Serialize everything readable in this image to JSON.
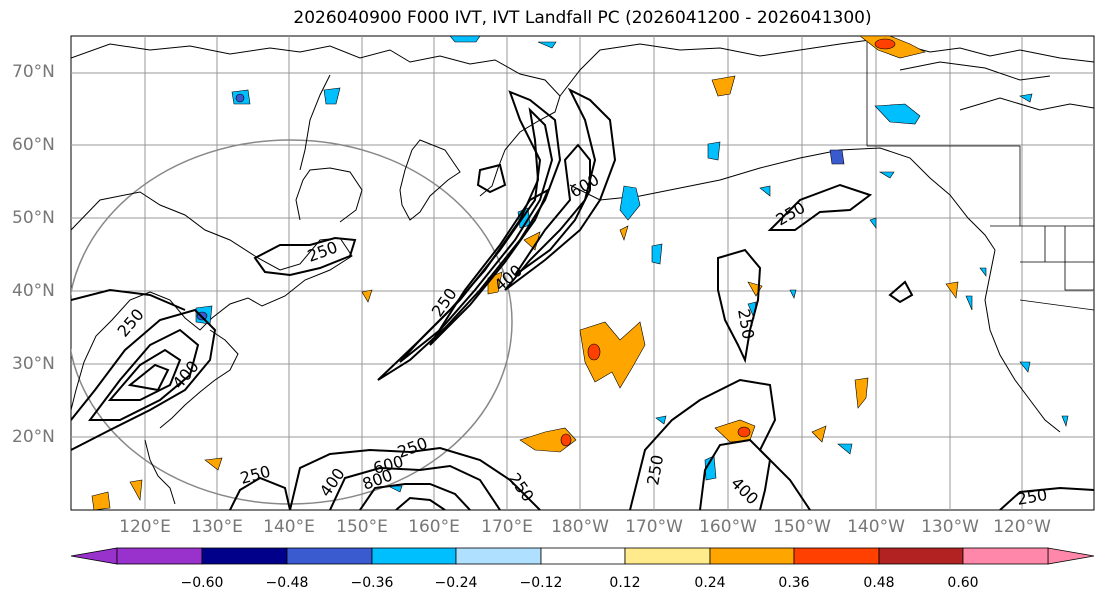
{
  "title": "2026040900 F000 IVT, IVT Landfall PC (2026041200 - 2026041300)",
  "lat_labels": [
    "70°N",
    "60°N",
    "50°N",
    "40°N",
    "30°N",
    "20°N"
  ],
  "lon_labels": [
    "120°E",
    "130°E",
    "140°E",
    "150°E",
    "160°E",
    "170°E",
    "180°W",
    "170°W",
    "160°W",
    "150°W",
    "140°W",
    "130°W",
    "120°W"
  ],
  "contour_labels": [
    "600",
    "250",
    "400",
    "250",
    "250",
    "250",
    "250",
    "400",
    "600",
    "800",
    "250",
    "250",
    "400",
    "250",
    "250",
    "400",
    "250"
  ],
  "colorbar": {
    "ticks": [
      "−0.60",
      "−0.48",
      "−0.36",
      "−0.24",
      "−0.12",
      "0.12",
      "0.24",
      "0.36",
      "0.48",
      "0.60"
    ],
    "colors": [
      "#9932CC",
      "#00008B",
      "#3A5BD0",
      "#00BFFF",
      "#B0E0FF",
      "#FFFFFF",
      "#FFEB8C",
      "#FFA500",
      "#FF4000",
      "#B22222",
      "#FF88AA"
    ]
  }
}
